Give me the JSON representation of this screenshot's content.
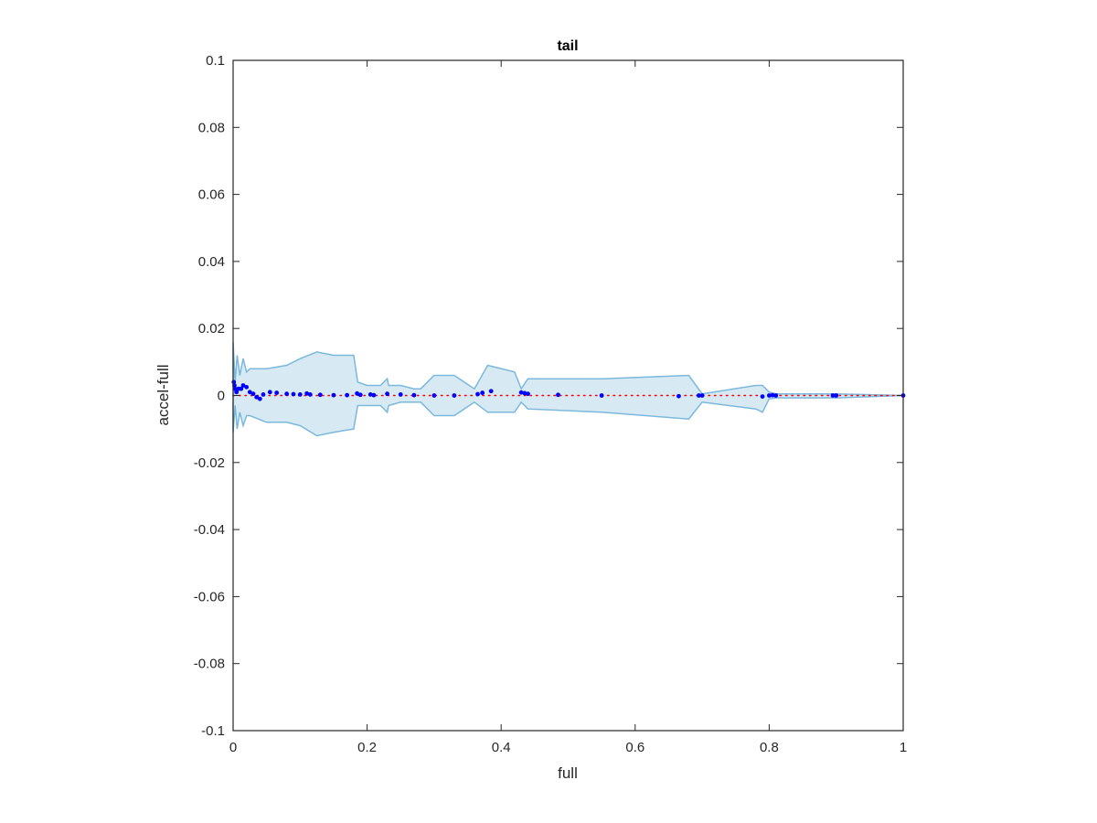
{
  "chart_data": {
    "type": "scatter",
    "title": "tail",
    "xlabel": "full",
    "ylabel": "accel-full",
    "xlim": [
      0,
      1
    ],
    "ylim": [
      -0.1,
      0.1
    ],
    "xticks": [
      0,
      0.2,
      0.4,
      0.6,
      0.8,
      1
    ],
    "yticks": [
      -0.1,
      -0.08,
      -0.06,
      -0.04,
      -0.02,
      0,
      0.02,
      0.04,
      0.06,
      0.08,
      0.1
    ],
    "band": {
      "color": "#7ab8dc",
      "x": [
        0,
        0.003,
        0.006,
        0.01,
        0.015,
        0.02,
        0.025,
        0.05,
        0.08,
        0.1,
        0.125,
        0.15,
        0.18,
        0.186,
        0.2,
        0.22,
        0.23,
        0.232,
        0.25,
        0.27,
        0.28,
        0.3,
        0.33,
        0.36,
        0.38,
        0.42,
        0.43,
        0.44,
        0.55,
        0.68,
        0.7,
        0.78,
        0.79,
        0.8,
        0.81,
        0.9,
        1
      ],
      "upper": [
        0.016,
        0.004,
        0.012,
        0.006,
        0.011,
        0.007,
        0.008,
        0.008,
        0.009,
        0.011,
        0.013,
        0.012,
        0.012,
        0.004,
        0.003,
        0.003,
        0.005,
        0.003,
        0.003,
        0.002,
        0.002,
        0.006,
        0.006,
        0.002,
        0.009,
        0.007,
        0.002,
        0.005,
        0.005,
        0.006,
        0.0005,
        0.003,
        0.003,
        0.001,
        0.0005,
        0.0005,
        0
      ],
      "lower": [
        -0.011,
        -0.003,
        -0.01,
        -0.005,
        -0.009,
        -0.006,
        -0.006,
        -0.008,
        -0.008,
        -0.009,
        -0.012,
        -0.011,
        -0.01,
        -0.003,
        -0.003,
        -0.003,
        -0.005,
        -0.003,
        -0.002,
        -0.002,
        -0.002,
        -0.006,
        -0.006,
        -0.002,
        -0.005,
        -0.005,
        -0.002,
        -0.004,
        -0.005,
        -0.007,
        -0.002,
        -0.004,
        -0.005,
        -0.001,
        -0.0007,
        -0.0007,
        0
      ]
    },
    "reference": {
      "color": "#ff0000",
      "x": [
        0,
        1
      ],
      "y": [
        0,
        0
      ]
    },
    "series": [
      {
        "color": "#0000ff",
        "x": [
          0.001,
          0.002,
          0.003,
          0.005,
          0.008,
          0.012,
          0.015,
          0.02,
          0.025,
          0.03,
          0.035,
          0.04,
          0.045,
          0.055,
          0.065,
          0.08,
          0.09,
          0.1,
          0.11,
          0.115,
          0.13,
          0.15,
          0.17,
          0.185,
          0.19,
          0.205,
          0.21,
          0.23,
          0.25,
          0.27,
          0.3,
          0.33,
          0.365,
          0.372,
          0.385,
          0.43,
          0.435,
          0.44,
          0.485,
          0.55,
          0.665,
          0.695,
          0.7,
          0.79,
          0.8,
          0.805,
          0.81,
          0.895,
          0.9,
          1
        ],
        "values": [
          0.004,
          0.003,
          0.002,
          0.001,
          0.002,
          0.002,
          0.003,
          0.0025,
          0.001,
          0.0005,
          -0.0005,
          -0.001,
          0.0003,
          0.001,
          0.0008,
          0.0005,
          0.0004,
          0.0003,
          0.0006,
          0.0003,
          0.0002,
          0.0001,
          0.0001,
          0.0006,
          0.0002,
          0.0003,
          0.0001,
          0.0005,
          0.0003,
          0.0001,
          0,
          0,
          0.0004,
          0.0008,
          0.0013,
          0.0009,
          0.0007,
          0.0005,
          0.0002,
          0,
          -0.0002,
          0,
          0,
          -0.0003,
          0,
          0.0001,
          0,
          0,
          0,
          0
        ]
      }
    ]
  }
}
